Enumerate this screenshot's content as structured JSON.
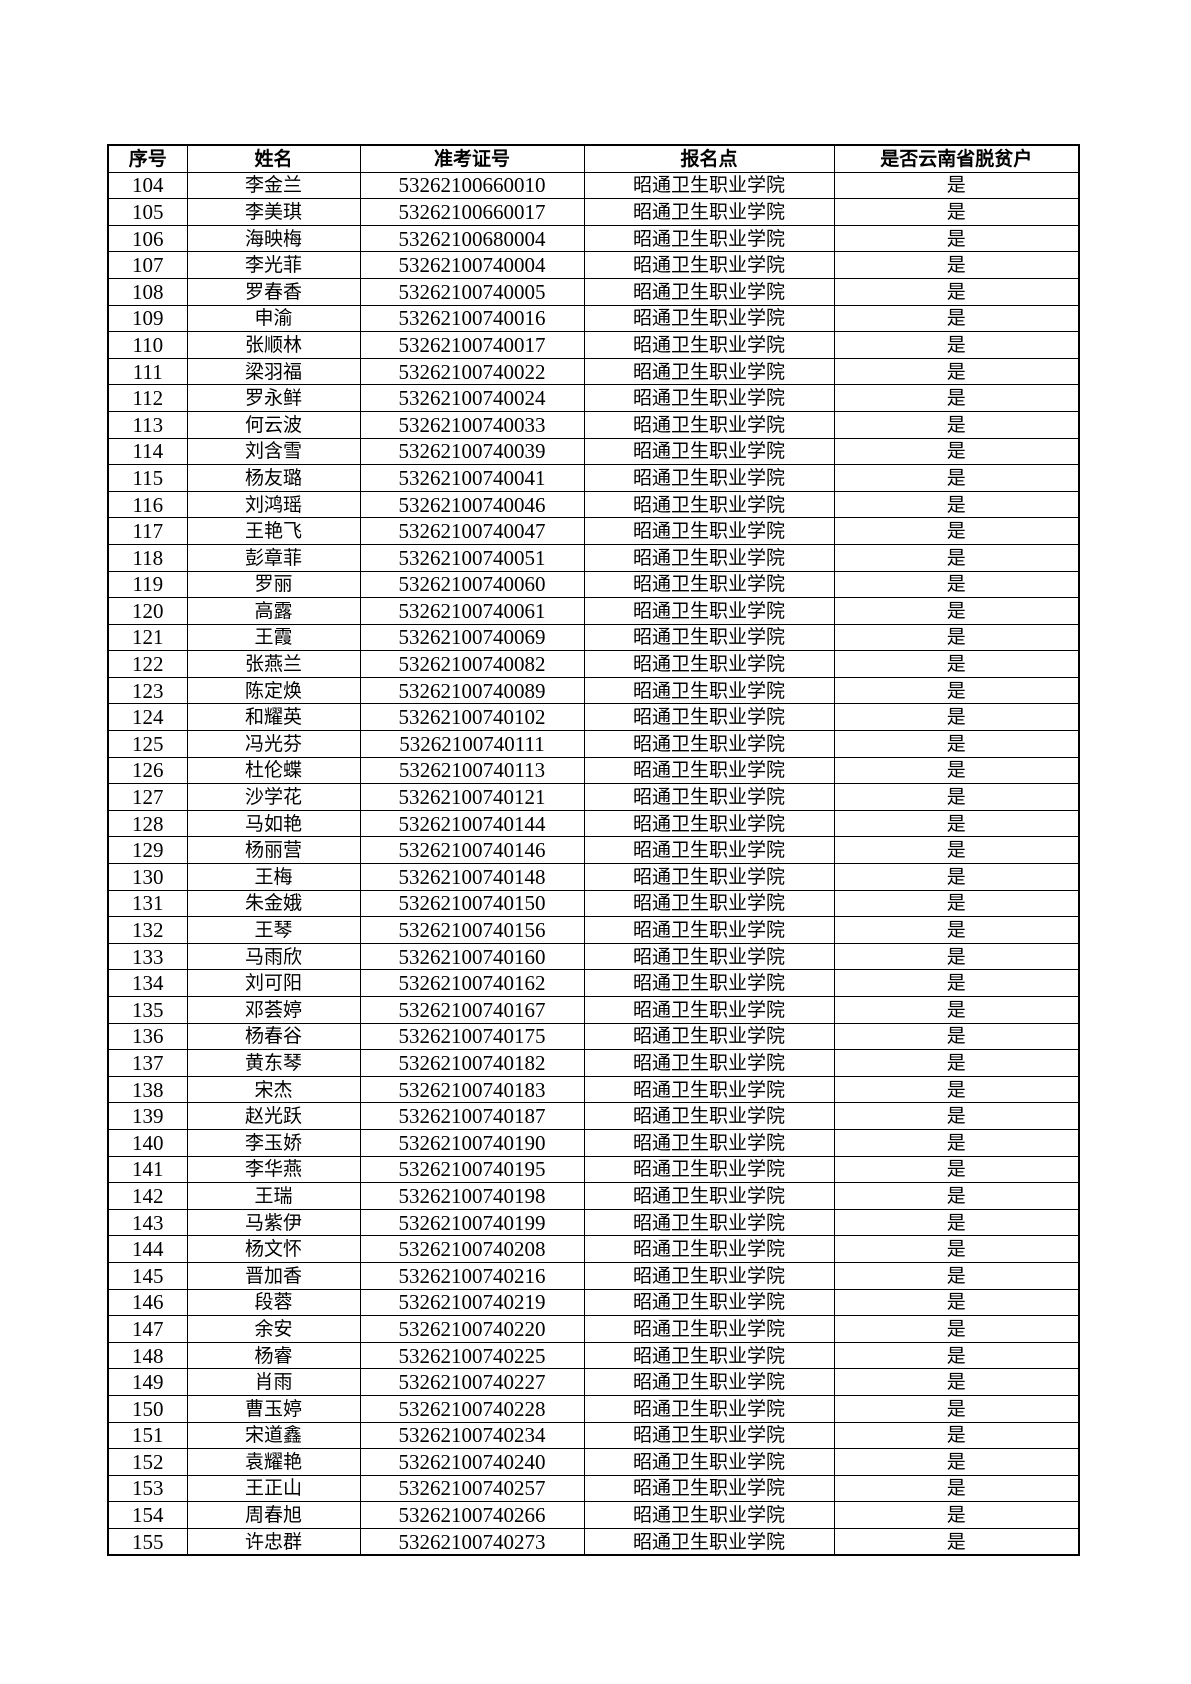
{
  "table": {
    "headers": [
      "序号",
      "姓名",
      "准考证号",
      "报名点",
      "是否云南省脱贫户"
    ],
    "rows": [
      [
        "104",
        "李金兰",
        "53262100660010",
        "昭通卫生职业学院",
        "是"
      ],
      [
        "105",
        "李美琪",
        "53262100660017",
        "昭通卫生职业学院",
        "是"
      ],
      [
        "106",
        "海映梅",
        "53262100680004",
        "昭通卫生职业学院",
        "是"
      ],
      [
        "107",
        "李光菲",
        "53262100740004",
        "昭通卫生职业学院",
        "是"
      ],
      [
        "108",
        "罗春香",
        "53262100740005",
        "昭通卫生职业学院",
        "是"
      ],
      [
        "109",
        "申渝",
        "53262100740016",
        "昭通卫生职业学院",
        "是"
      ],
      [
        "110",
        "张顺林",
        "53262100740017",
        "昭通卫生职业学院",
        "是"
      ],
      [
        "111",
        "梁羽福",
        "53262100740022",
        "昭通卫生职业学院",
        "是"
      ],
      [
        "112",
        "罗永鲜",
        "53262100740024",
        "昭通卫生职业学院",
        "是"
      ],
      [
        "113",
        "何云波",
        "53262100740033",
        "昭通卫生职业学院",
        "是"
      ],
      [
        "114",
        "刘含雪",
        "53262100740039",
        "昭通卫生职业学院",
        "是"
      ],
      [
        "115",
        "杨友璐",
        "53262100740041",
        "昭通卫生职业学院",
        "是"
      ],
      [
        "116",
        "刘鸿瑶",
        "53262100740046",
        "昭通卫生职业学院",
        "是"
      ],
      [
        "117",
        "王艳飞",
        "53262100740047",
        "昭通卫生职业学院",
        "是"
      ],
      [
        "118",
        "彭章菲",
        "53262100740051",
        "昭通卫生职业学院",
        "是"
      ],
      [
        "119",
        "罗丽",
        "53262100740060",
        "昭通卫生职业学院",
        "是"
      ],
      [
        "120",
        "高露",
        "53262100740061",
        "昭通卫生职业学院",
        "是"
      ],
      [
        "121",
        "王霞",
        "53262100740069",
        "昭通卫生职业学院",
        "是"
      ],
      [
        "122",
        "张燕兰",
        "53262100740082",
        "昭通卫生职业学院",
        "是"
      ],
      [
        "123",
        "陈定焕",
        "53262100740089",
        "昭通卫生职业学院",
        "是"
      ],
      [
        "124",
        "和耀英",
        "53262100740102",
        "昭通卫生职业学院",
        "是"
      ],
      [
        "125",
        "冯光芬",
        "53262100740111",
        "昭通卫生职业学院",
        "是"
      ],
      [
        "126",
        "杜伦蝶",
        "53262100740113",
        "昭通卫生职业学院",
        "是"
      ],
      [
        "127",
        "沙学花",
        "53262100740121",
        "昭通卫生职业学院",
        "是"
      ],
      [
        "128",
        "马如艳",
        "53262100740144",
        "昭通卫生职业学院",
        "是"
      ],
      [
        "129",
        "杨丽营",
        "53262100740146",
        "昭通卫生职业学院",
        "是"
      ],
      [
        "130",
        "王梅",
        "53262100740148",
        "昭通卫生职业学院",
        "是"
      ],
      [
        "131",
        "朱金娥",
        "53262100740150",
        "昭通卫生职业学院",
        "是"
      ],
      [
        "132",
        "王琴",
        "53262100740156",
        "昭通卫生职业学院",
        "是"
      ],
      [
        "133",
        "马雨欣",
        "53262100740160",
        "昭通卫生职业学院",
        "是"
      ],
      [
        "134",
        "刘可阳",
        "53262100740162",
        "昭通卫生职业学院",
        "是"
      ],
      [
        "135",
        "邓荟婷",
        "53262100740167",
        "昭通卫生职业学院",
        "是"
      ],
      [
        "136",
        "杨春谷",
        "53262100740175",
        "昭通卫生职业学院",
        "是"
      ],
      [
        "137",
        "黄东琴",
        "53262100740182",
        "昭通卫生职业学院",
        "是"
      ],
      [
        "138",
        "宋杰",
        "53262100740183",
        "昭通卫生职业学院",
        "是"
      ],
      [
        "139",
        "赵光跃",
        "53262100740187",
        "昭通卫生职业学院",
        "是"
      ],
      [
        "140",
        "李玉娇",
        "53262100740190",
        "昭通卫生职业学院",
        "是"
      ],
      [
        "141",
        "李华燕",
        "53262100740195",
        "昭通卫生职业学院",
        "是"
      ],
      [
        "142",
        "王瑞",
        "53262100740198",
        "昭通卫生职业学院",
        "是"
      ],
      [
        "143",
        "马紫伊",
        "53262100740199",
        "昭通卫生职业学院",
        "是"
      ],
      [
        "144",
        "杨文怀",
        "53262100740208",
        "昭通卫生职业学院",
        "是"
      ],
      [
        "145",
        "晋加香",
        "53262100740216",
        "昭通卫生职业学院",
        "是"
      ],
      [
        "146",
        "段蓉",
        "53262100740219",
        "昭通卫生职业学院",
        "是"
      ],
      [
        "147",
        "余安",
        "53262100740220",
        "昭通卫生职业学院",
        "是"
      ],
      [
        "148",
        "杨睿",
        "53262100740225",
        "昭通卫生职业学院",
        "是"
      ],
      [
        "149",
        "肖雨",
        "53262100740227",
        "昭通卫生职业学院",
        "是"
      ],
      [
        "150",
        "曹玉婷",
        "53262100740228",
        "昭通卫生职业学院",
        "是"
      ],
      [
        "151",
        "宋道鑫",
        "53262100740234",
        "昭通卫生职业学院",
        "是"
      ],
      [
        "152",
        "袁耀艳",
        "53262100740240",
        "昭通卫生职业学院",
        "是"
      ],
      [
        "153",
        "王正山",
        "53262100740257",
        "昭通卫生职业学院",
        "是"
      ],
      [
        "154",
        "周春旭",
        "53262100740266",
        "昭通卫生职业学院",
        "是"
      ],
      [
        "155",
        "许忠群",
        "53262100740273",
        "昭通卫生职业学院",
        "是"
      ]
    ]
  }
}
